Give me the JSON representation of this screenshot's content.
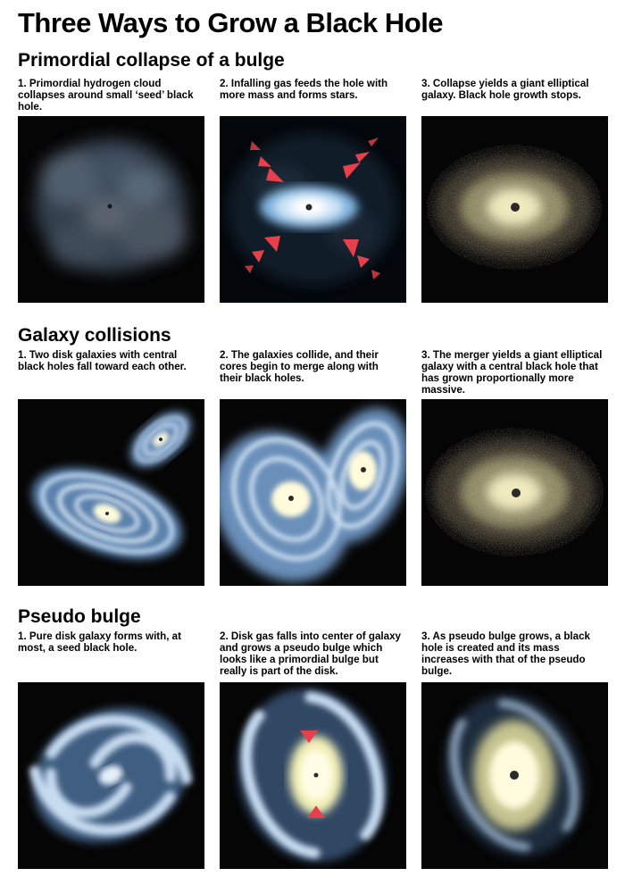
{
  "title": "Three Ways to Grow a Black Hole",
  "sections": [
    {
      "heading": "Primordial collapse of a bulge",
      "steps": [
        "1. Primordial hydrogen cloud collapses around small ‘seed’ black hole.",
        "2. Infalling gas feeds the hole with more mass and forms stars.",
        "3. Collapse yields a giant elliptical galaxy. Black hole growth stops."
      ]
    },
    {
      "heading": "Galaxy collisions",
      "steps": [
        "1. Two disk galaxies with central black holes fall toward each other.",
        "2. The galaxies collide, and their cores begin to merge along with their black holes.",
        "3. The merger yields a giant elliptical galaxy with a central black hole that has grown proportionally more massive."
      ]
    },
    {
      "heading": "Pseudo bulge",
      "steps": [
        "1. Pure disk galaxy forms with, at most, a seed black hole.",
        "2. Disk gas falls into center of galaxy and grows a pseudo bulge which looks like a primordial bulge but really is part of the disk.",
        "3. As pseudo bulge grows, a black hole is created and its mass increases with that of the pseudo bulge."
      ]
    }
  ],
  "colors": {
    "panel_background": "#000000",
    "arrow_red": "#e8404a",
    "disk_blue": "#a9c6e8",
    "core_yellow": "#fffbd8",
    "black_hole": "#2a2a2a"
  }
}
